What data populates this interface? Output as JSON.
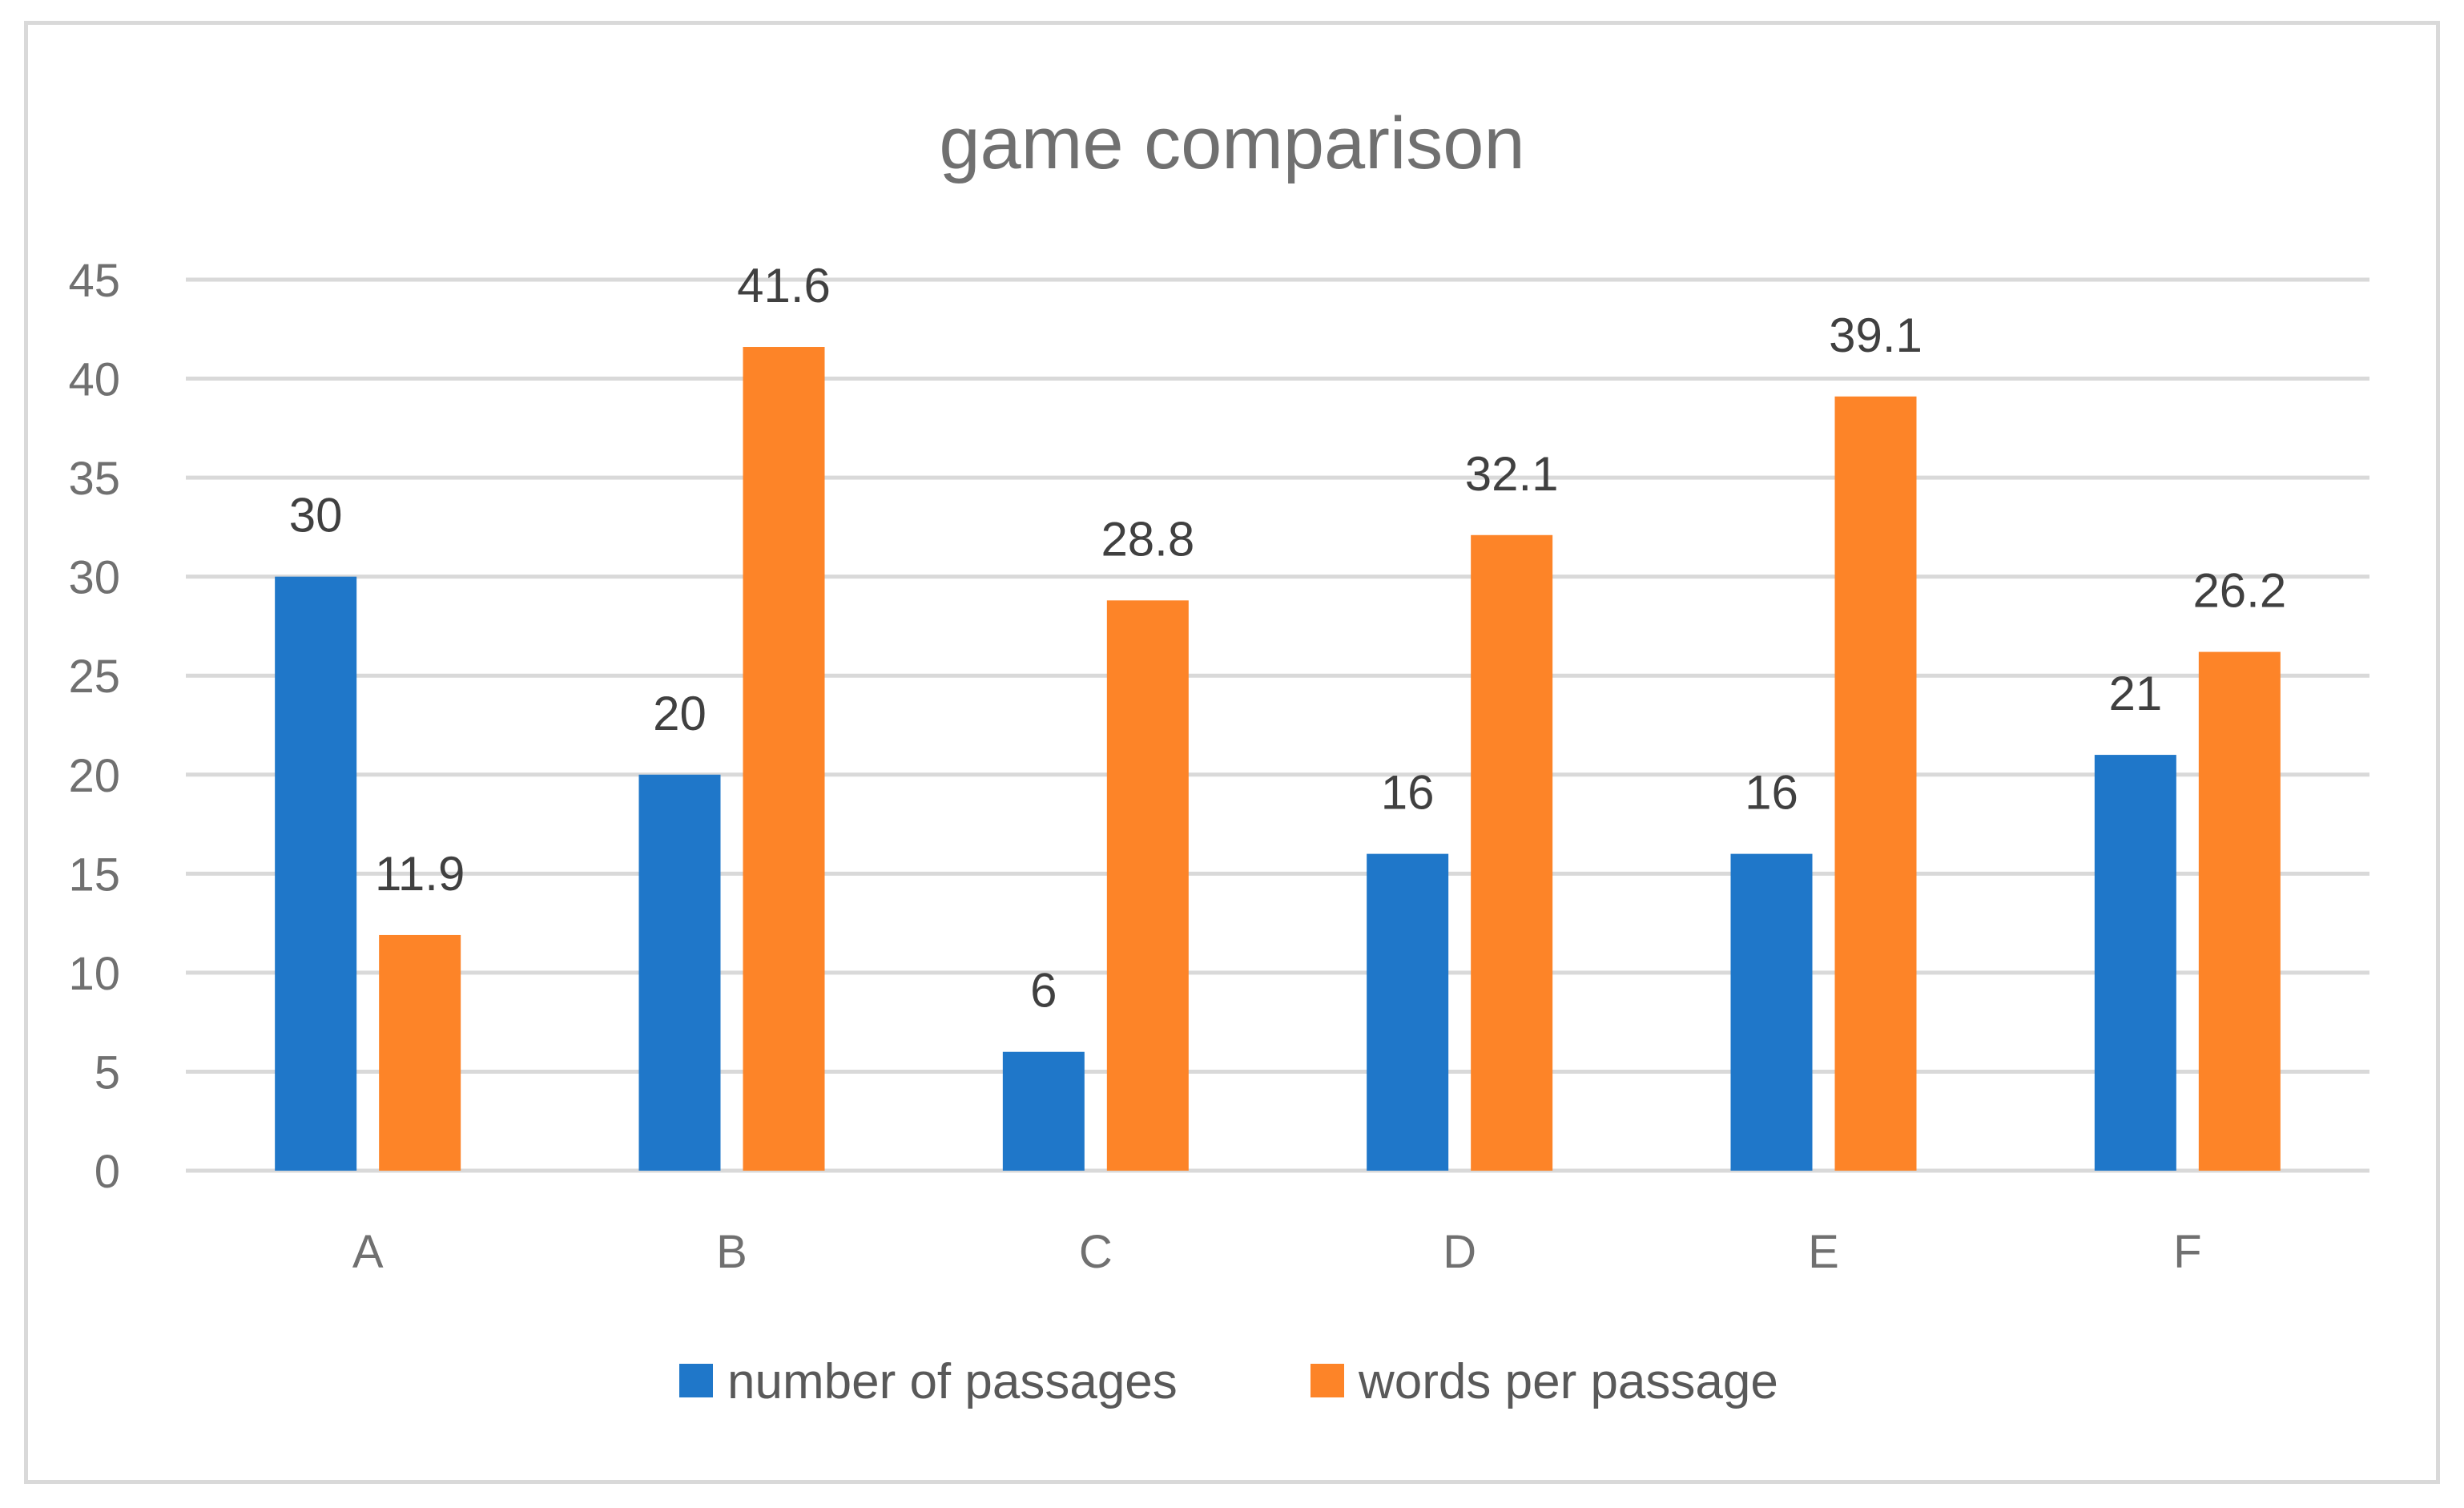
{
  "chart_data": {
    "type": "bar",
    "title": "game comparison",
    "xlabel": "",
    "ylabel": "",
    "categories": [
      "A",
      "B",
      "C",
      "D",
      "E",
      "F"
    ],
    "series": [
      {
        "name": "number of passages",
        "color": "#1f77c9",
        "values": [
          30,
          20,
          6,
          16,
          16,
          21
        ],
        "labels": [
          "30",
          "20",
          "6",
          "16",
          "16",
          "21"
        ]
      },
      {
        "name": "words per passage",
        "color": "#fd8428",
        "values": [
          11.9,
          41.6,
          28.8,
          32.1,
          39.1,
          26.2
        ],
        "labels": [
          "11.9",
          "41.6",
          "28.8",
          "32.1",
          "39.1",
          "26.2"
        ]
      }
    ],
    "ylim": [
      0,
      45
    ],
    "yticks": [
      0,
      5,
      10,
      15,
      20,
      25,
      30,
      35,
      40,
      45
    ],
    "ytick_labels": [
      "0",
      "5",
      "10",
      "15",
      "20",
      "25",
      "30",
      "35",
      "40",
      "45"
    ],
    "grid": true,
    "legend_position": "bottom",
    "data_labels": true
  }
}
